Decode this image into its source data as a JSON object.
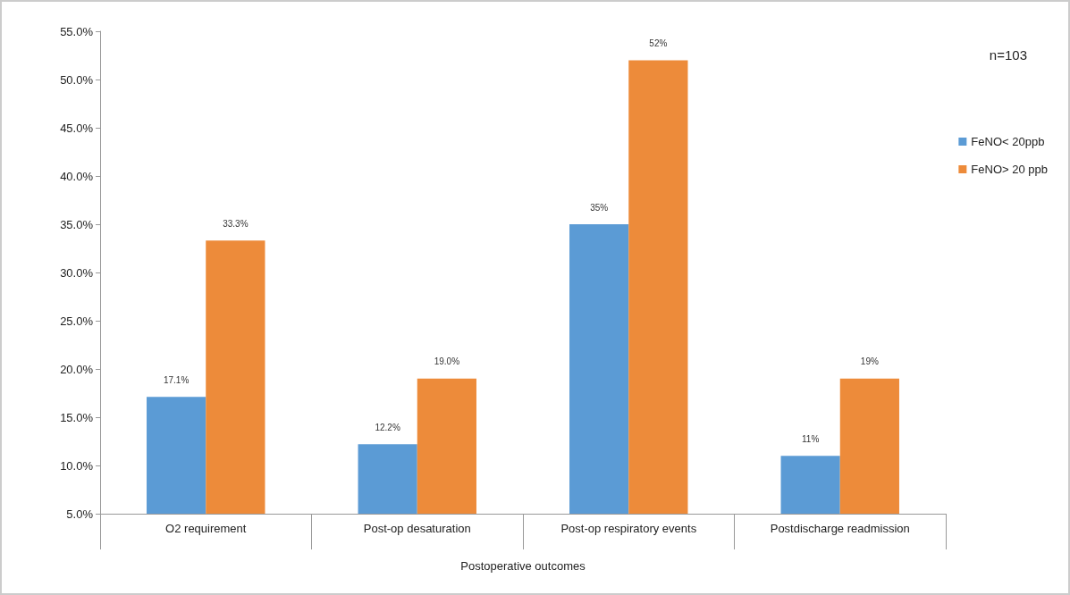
{
  "chart_data": {
    "type": "bar",
    "xlabel": "Postoperative outcomes",
    "annotations": [
      "n=103"
    ],
    "categories": [
      "O2 requirement",
      "Post-op desaturation",
      "Post-op respiratory events",
      "Postdischarge readmission"
    ],
    "series": [
      {
        "name": "FeNO< 20ppb",
        "color": "#5b9bd5",
        "values": [
          17.1,
          12.2,
          35,
          11
        ],
        "value_labels": [
          "17.1%",
          "12.2%",
          "35%",
          "11%"
        ]
      },
      {
        "name": "FeNO> 20 ppb",
        "color": "#ed8b3a",
        "values": [
          33.3,
          19.0,
          52,
          19
        ],
        "value_labels": [
          "33.3%",
          "19.0%",
          "52%",
          "19%"
        ]
      }
    ],
    "ylim": [
      5,
      55
    ],
    "yticks": [
      {
        "value": 5,
        "label": "5.0%"
      },
      {
        "value": 10,
        "label": "10.0%"
      },
      {
        "value": 15,
        "label": "15.0%"
      },
      {
        "value": 20,
        "label": "20.0%"
      },
      {
        "value": 25,
        "label": "25.0%"
      },
      {
        "value": 30,
        "label": "30.0%"
      },
      {
        "value": 35,
        "label": "35.0%"
      },
      {
        "value": 40,
        "label": "40.0%"
      },
      {
        "value": 45,
        "label": "45.0%"
      },
      {
        "value": 50,
        "label": "50.0%"
      },
      {
        "value": 55,
        "label": "55.0%"
      }
    ],
    "grid": false,
    "legend": "right"
  }
}
